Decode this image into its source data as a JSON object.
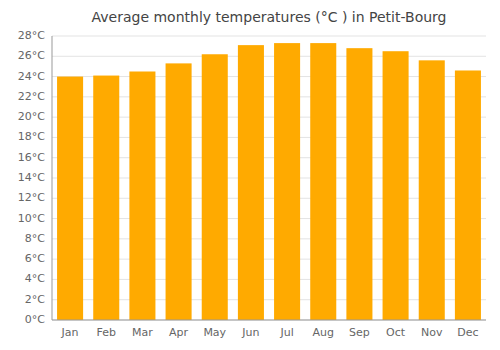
{
  "chart_data": {
    "type": "bar",
    "title": "Average monthly temperatures (°C ) in Petit-Bourg",
    "categories": [
      "Jan",
      "Feb",
      "Mar",
      "Apr",
      "May",
      "Jun",
      "Jul",
      "Aug",
      "Sep",
      "Oct",
      "Nov",
      "Dec"
    ],
    "values": [
      24.0,
      24.1,
      24.5,
      25.3,
      26.2,
      27.1,
      27.3,
      27.3,
      26.8,
      26.5,
      25.6,
      24.6
    ],
    "color": "#FFAA00",
    "ylim": [
      0,
      28
    ],
    "yticks": [
      {
        "value": 0,
        "label": "0°C"
      },
      {
        "value": 2,
        "label": "2°C"
      },
      {
        "value": 4,
        "label": "4°C"
      },
      {
        "value": 6,
        "label": "6°C"
      },
      {
        "value": 8,
        "label": "8°C"
      },
      {
        "value": 10,
        "label": "10°C"
      },
      {
        "value": 12,
        "label": "12°C"
      },
      {
        "value": 14,
        "label": "14°C"
      },
      {
        "value": 16,
        "label": "16°C"
      },
      {
        "value": 18,
        "label": "18°C"
      },
      {
        "value": 20,
        "label": "20°C"
      },
      {
        "value": 22,
        "label": "22°C"
      },
      {
        "value": 24,
        "label": "24°C"
      },
      {
        "value": 26,
        "label": "26°C"
      },
      {
        "value": 28,
        "label": "28°C"
      }
    ],
    "grid": true
  }
}
